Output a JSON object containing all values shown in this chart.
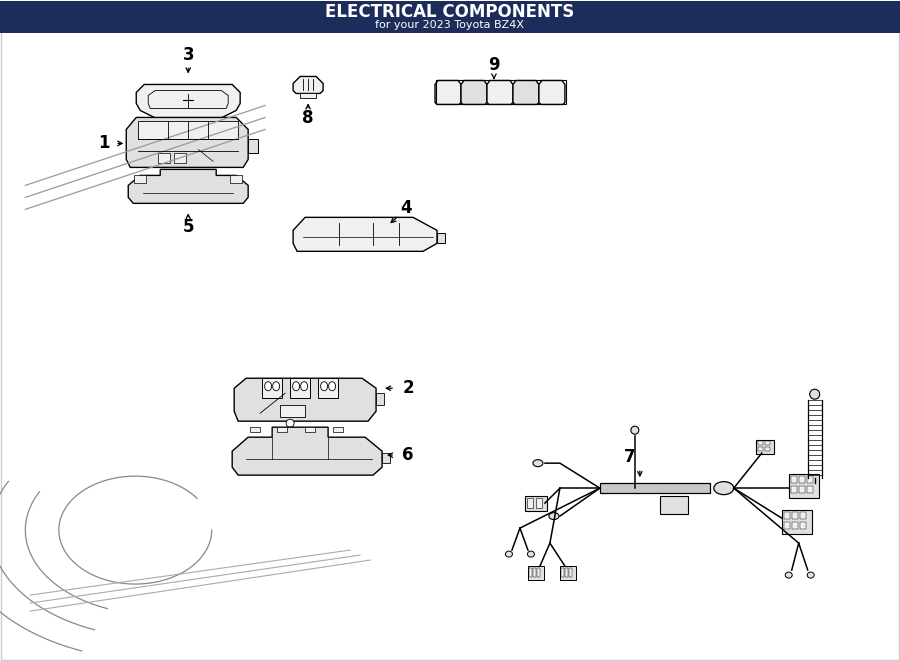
{
  "title": "ELECTRICAL COMPONENTS",
  "subtitle": "for your 2023 Toyota BZ4X",
  "bg_color": "#ffffff",
  "fig_width": 9.0,
  "fig_height": 6.61,
  "dpi": 100,
  "title_bar_color": "#1c2c5b",
  "title_text_color": "#ffffff",
  "lc": "#000000",
  "gray1": "#f0f0f0",
  "gray2": "#e0e0e0",
  "gray3": "#c8c8c8"
}
